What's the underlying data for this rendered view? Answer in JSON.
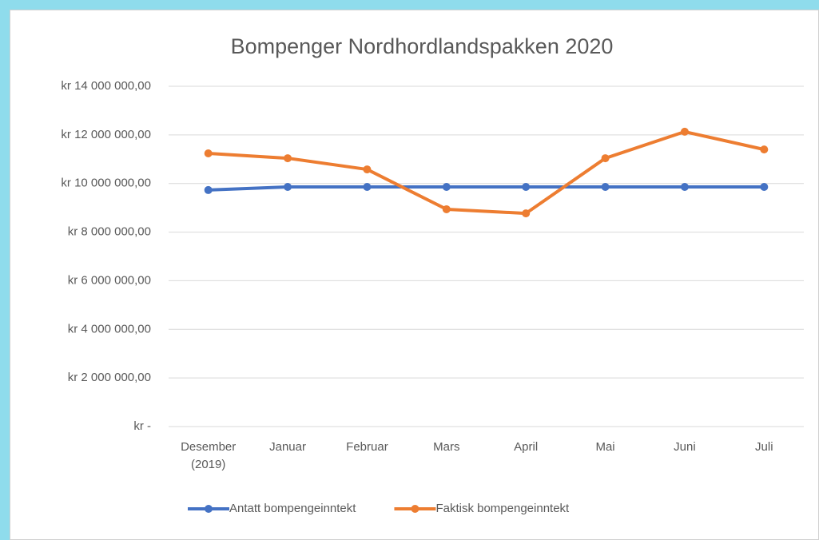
{
  "chart_data": {
    "type": "line",
    "title": "Bompenger Nordhordlandspakken 2020",
    "categories": [
      "Desember\n(2019)",
      "Januar",
      "Februar",
      "Mars",
      "April",
      "Mai",
      "Juni",
      "Juli"
    ],
    "series": [
      {
        "name": "Antatt bompengeinntekt",
        "color": "#4472c4",
        "values": [
          9730000,
          9860000,
          9860000,
          9860000,
          9860000,
          9860000,
          9860000,
          9860000
        ]
      },
      {
        "name": "Faktisk bompengeinntekt",
        "color": "#ed7d31",
        "values": [
          11240000,
          11040000,
          10580000,
          8940000,
          8770000,
          11040000,
          12130000,
          11400000
        ]
      }
    ],
    "ylim": [
      0,
      14000000
    ],
    "yticks": [
      {
        "value": 0,
        "label": "kr -"
      },
      {
        "value": 2000000,
        "label": "kr 2 000 000,00"
      },
      {
        "value": 4000000,
        "label": "kr 4 000 000,00"
      },
      {
        "value": 6000000,
        "label": "kr 6 000 000,00"
      },
      {
        "value": 8000000,
        "label": "kr 8 000 000,00"
      },
      {
        "value": 10000000,
        "label": "kr 10 000 000,00"
      },
      {
        "value": 12000000,
        "label": "kr 12 000 000,00"
      },
      {
        "value": 14000000,
        "label": "kr 14 000 000,00"
      }
    ],
    "grid": true,
    "legend": "bottom"
  }
}
